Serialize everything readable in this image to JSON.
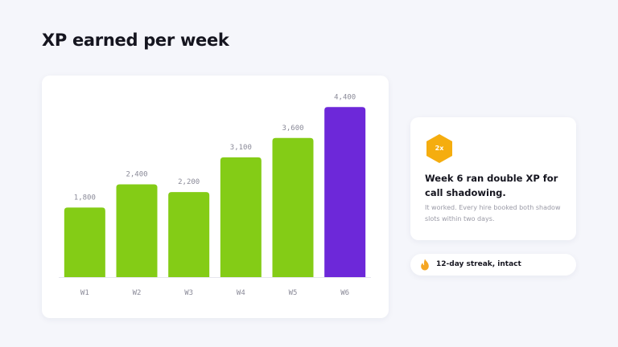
{
  "page": {
    "title": "XP earned per week"
  },
  "chart_data": {
    "type": "bar",
    "title": "XP earned per week",
    "categories": [
      "W1",
      "W2",
      "W3",
      "W4",
      "W5",
      "W6"
    ],
    "values": [
      1800,
      2400,
      2200,
      3100,
      3600,
      4400
    ],
    "value_labels": [
      "1,800",
      "2,400",
      "2,200",
      "3,100",
      "3,600",
      "4,400"
    ],
    "highlight_index": 5,
    "ylim": [
      0,
      4800
    ],
    "grid": false,
    "xlabel": "",
    "ylabel": "",
    "colors": {
      "bar": "#84cc16",
      "highlight": "#6d28d9",
      "highlight_label": "#6d28d9",
      "baseline": "#e6e6ee"
    }
  },
  "note": {
    "badge_label": "2x",
    "badge_color": "#f5ad0f",
    "title": "Week 6 ran double XP for call shadowing.",
    "body": "It worked. Every hire booked both shadow slots within two days."
  },
  "streak": {
    "icon": "flame-icon",
    "label": "12-day streak, intact",
    "flame_color": "#f5a623"
  }
}
